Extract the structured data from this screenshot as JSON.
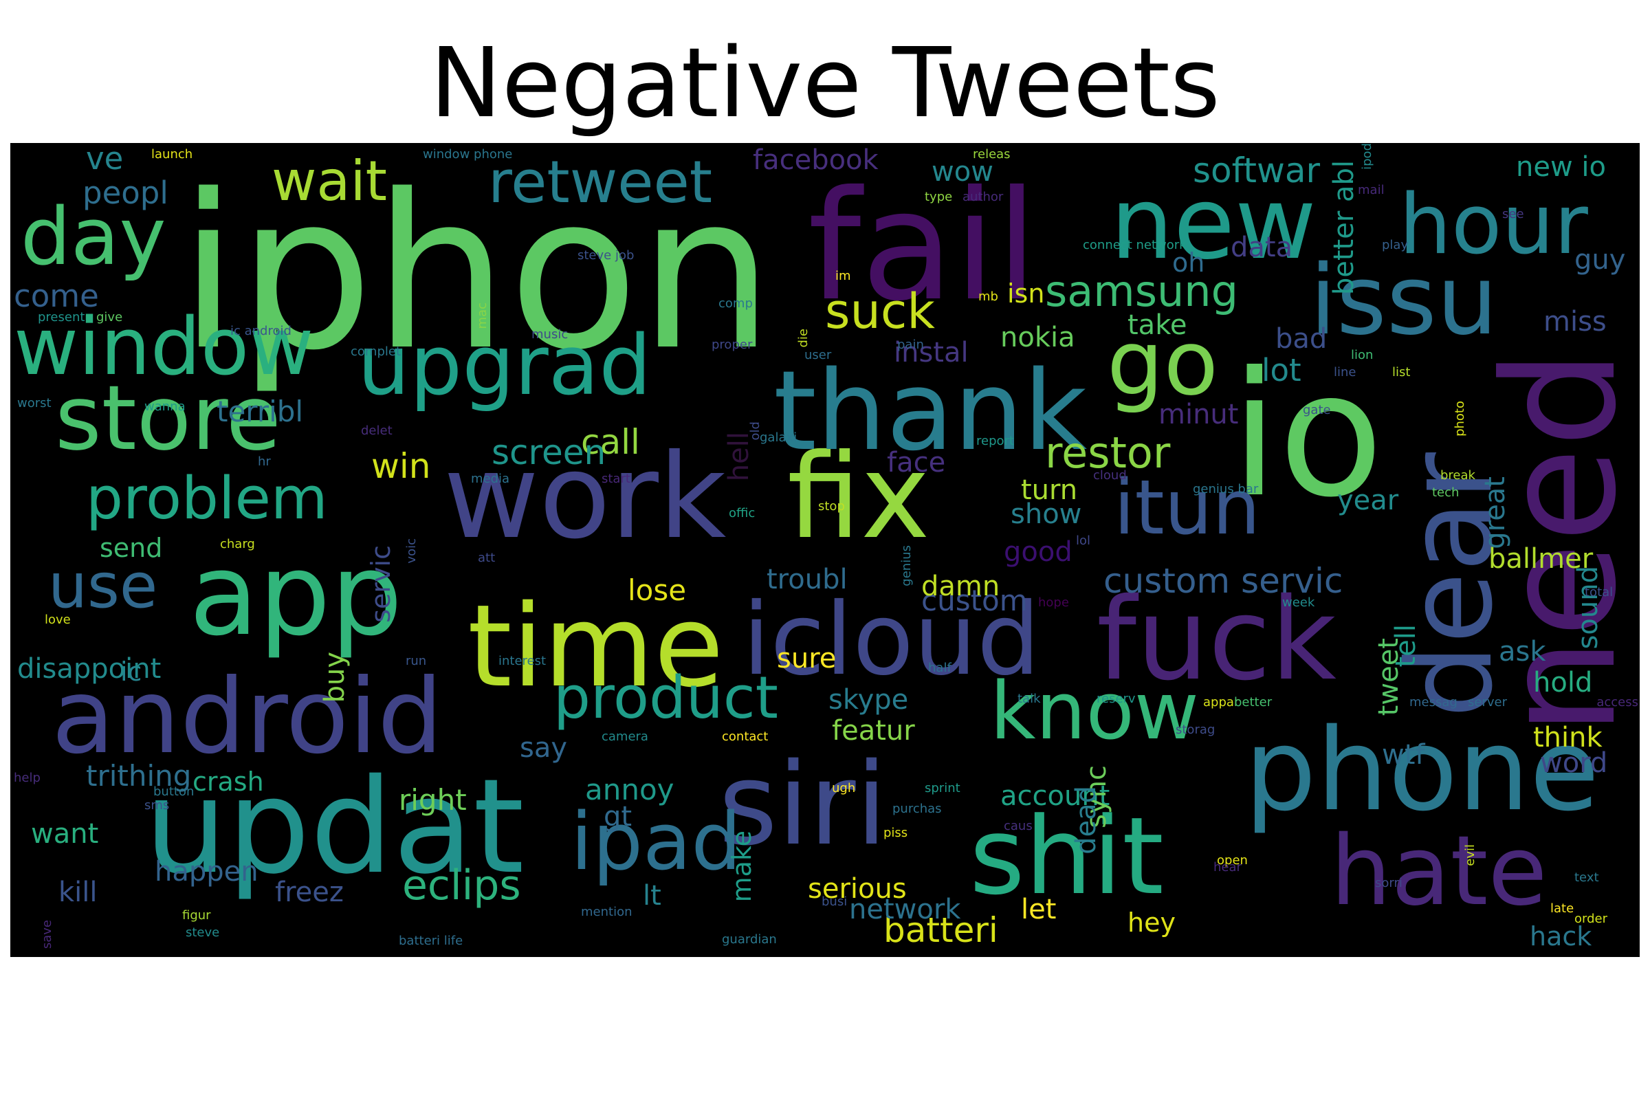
{
  "title": "Negative Tweets",
  "words": [
    {
      "t": "iphon",
      "c": "#5cc863"
    },
    {
      "t": "fail",
      "c": "#440f62"
    },
    {
      "t": "new",
      "c": "#1f9a8a"
    },
    {
      "t": "hour",
      "c": "#26828e"
    },
    {
      "t": "issu",
      "c": "#2c728e"
    },
    {
      "t": "go",
      "c": "#7ad151"
    },
    {
      "t": "io",
      "c": "#5ec962"
    },
    {
      "t": "need",
      "c": "#481a6c"
    },
    {
      "t": "dear",
      "c": "#3b528b"
    },
    {
      "t": "work",
      "c": "#414487"
    },
    {
      "t": "fix",
      "c": "#95d840"
    },
    {
      "t": "app",
      "c": "#31b57b"
    },
    {
      "t": "time",
      "c": "#b5de2b"
    },
    {
      "t": "icloud",
      "c": "#3f4788"
    },
    {
      "t": "fuck",
      "c": "#482475"
    },
    {
      "t": "updat",
      "c": "#21918c"
    },
    {
      "t": "siri",
      "c": "#3e4a89"
    },
    {
      "t": "phone",
      "c": "#2a788e"
    },
    {
      "t": "android",
      "c": "#404387"
    },
    {
      "t": "ipad",
      "c": "#2d708e"
    },
    {
      "t": "shit",
      "c": "#25ab82"
    },
    {
      "t": "hate",
      "c": "#482878"
    },
    {
      "t": "know",
      "c": "#35b779"
    },
    {
      "t": "thank",
      "c": "#287d8e"
    },
    {
      "t": "itun",
      "c": "#39568c"
    },
    {
      "t": "upgrad",
      "c": "#1fa088"
    },
    {
      "t": "store",
      "c": "#4ac16d"
    },
    {
      "t": "window",
      "c": "#2ab07f"
    },
    {
      "t": "day",
      "c": "#46c06f"
    },
    {
      "t": "retweet",
      "c": "#277f8e"
    },
    {
      "t": "wait",
      "c": "#a8db34"
    },
    {
      "t": "suck",
      "c": "#c8e020"
    },
    {
      "t": "samsung",
      "c": "#3dbc74"
    },
    {
      "t": "problem",
      "c": "#22a785"
    },
    {
      "t": "use",
      "c": "#31688e"
    },
    {
      "t": "product",
      "c": "#1f9e89"
    },
    {
      "t": "eclips",
      "c": "#2db27d"
    },
    {
      "t": "batteri",
      "c": "#d8e219"
    },
    {
      "t": "restor",
      "c": "#8bd646"
    },
    {
      "t": "custom servic",
      "c": "#355f8d"
    },
    {
      "t": "peopl",
      "c": "#2e6e8e"
    },
    {
      "t": "ve",
      "c": "#25858e"
    },
    {
      "t": "come",
      "c": "#34608d"
    },
    {
      "t": "facebook",
      "c": "#472f7d"
    },
    {
      "t": "wow",
      "c": "#24878e"
    },
    {
      "t": "softwar",
      "c": "#20928c"
    },
    {
      "t": "new io",
      "c": "#1e9c89"
    },
    {
      "t": "guy",
      "c": "#33638d"
    },
    {
      "t": "miss",
      "c": "#3d4e8a"
    },
    {
      "t": "oh",
      "c": "#2f6b8e"
    },
    {
      "t": "data",
      "c": "#433e85"
    },
    {
      "t": "take",
      "c": "#52c569"
    },
    {
      "t": "bad",
      "c": "#3c4f8a"
    },
    {
      "t": "lot",
      "c": "#238a8d"
    },
    {
      "t": "nokia",
      "c": "#67cc5c"
    },
    {
      "t": "instal",
      "c": "#453781"
    },
    {
      "t": "call",
      "c": "#93d741"
    },
    {
      "t": "terribl",
      "c": "#2d718e"
    },
    {
      "t": "win",
      "c": "#d2e21b"
    },
    {
      "t": "screen",
      "c": "#1f958b"
    },
    {
      "t": "minut",
      "c": "#472d7b"
    },
    {
      "t": "face",
      "c": "#46307e"
    },
    {
      "t": "turn",
      "c": "#aadc32"
    },
    {
      "t": "show",
      "c": "#27808e"
    },
    {
      "t": "good",
      "c": "#3b0f70"
    },
    {
      "t": "year",
      "c": "#228c8d"
    },
    {
      "t": "ask",
      "c": "#2a768e"
    },
    {
      "t": "hold",
      "c": "#27ad81"
    },
    {
      "t": "ballmer",
      "c": "#b2dd2d"
    },
    {
      "t": "sound",
      "c": "#23888e"
    },
    {
      "t": "great",
      "c": "#2a788e"
    },
    {
      "t": "tell",
      "c": "#1e9b8a"
    },
    {
      "t": "tweet",
      "c": "#56c667"
    },
    {
      "t": "think",
      "c": "#d0e11c"
    },
    {
      "t": "word",
      "c": "#3f4889"
    },
    {
      "t": "wtf",
      "c": "#2e6f8e"
    },
    {
      "t": "account",
      "c": "#20a386"
    },
    {
      "t": "featur",
      "c": "#86d549"
    },
    {
      "t": "skype",
      "c": "#287c8e"
    },
    {
      "t": "custom",
      "c": "#3b528b"
    },
    {
      "t": "troubl",
      "c": "#2f6c8e"
    },
    {
      "t": "damn",
      "c": "#c0df25"
    },
    {
      "t": "lose",
      "c": "#e5e419"
    },
    {
      "t": "sure",
      "c": "#fde725"
    },
    {
      "t": "send",
      "c": "#3fbc73"
    },
    {
      "t": "ic",
      "c": "#25848e"
    },
    {
      "t": "disappoint",
      "c": "#228b8d"
    },
    {
      "t": "buy",
      "c": "#84d44b"
    },
    {
      "t": "trithing",
      "c": "#2e6f8e"
    },
    {
      "t": "crash",
      "c": "#24aa83"
    },
    {
      "t": "right",
      "c": "#6ece58"
    },
    {
      "t": "annoy",
      "c": "#1f998a"
    },
    {
      "t": "gt",
      "c": "#306a8e"
    },
    {
      "t": "make",
      "c": "#1e9d89"
    },
    {
      "t": "say",
      "c": "#31668e"
    },
    {
      "t": "sync",
      "c": "#6ccd5a"
    },
    {
      "t": "want",
      "c": "#29af7f"
    },
    {
      "t": "happen",
      "c": "#33638d"
    },
    {
      "t": "kill",
      "c": "#3a548c"
    },
    {
      "t": "freez",
      "c": "#3b528b"
    },
    {
      "t": "lt",
      "c": "#26828e"
    },
    {
      "t": "serious",
      "c": "#e2e418"
    },
    {
      "t": "network",
      "c": "#2c728e"
    },
    {
      "t": "let",
      "c": "#fde725"
    },
    {
      "t": "dead",
      "c": "#287d8e"
    },
    {
      "t": "hack",
      "c": "#2a788e"
    },
    {
      "t": "hey",
      "c": "#dfe318"
    },
    {
      "t": "servic",
      "c": "#3e4c8a"
    },
    {
      "t": "hell",
      "c": "#30123b"
    },
    {
      "t": "isn",
      "c": "#d2e21b"
    },
    {
      "t": "better abl",
      "c": "#1f9a8a"
    },
    {
      "t": "launch",
      "c": "#e5e419"
    },
    {
      "t": "window phone",
      "c": "#2a768e"
    },
    {
      "t": "releas",
      "c": "#9bd93c"
    },
    {
      "t": "author",
      "c": "#472a7a"
    },
    {
      "t": "type",
      "c": "#90d743"
    },
    {
      "t": "steve job",
      "c": "#3b528b"
    },
    {
      "t": "die",
      "c": "#c2df23"
    },
    {
      "t": "im",
      "c": "#fde725"
    },
    {
      "t": "comp",
      "c": "#2a788e"
    },
    {
      "t": "connect network",
      "c": "#1f9e89"
    },
    {
      "t": "play",
      "c": "#35608d"
    },
    {
      "t": "see",
      "c": "#453781"
    },
    {
      "t": "mail",
      "c": "#472a7a"
    },
    {
      "t": "ipod",
      "c": "#238a8d"
    },
    {
      "t": "present",
      "c": "#1f948c"
    },
    {
      "t": "give",
      "c": "#5ec962"
    },
    {
      "t": "ic android",
      "c": "#39568c"
    },
    {
      "t": "complet",
      "c": "#2a788e"
    },
    {
      "t": "music",
      "c": "#3e4a89"
    },
    {
      "t": "proper",
      "c": "#3f4889"
    },
    {
      "t": "mac",
      "c": "#89d548"
    },
    {
      "t": "mb",
      "c": "#e2e418"
    },
    {
      "t": "user",
      "c": "#2e6e8e"
    },
    {
      "t": "pain",
      "c": "#33638d"
    },
    {
      "t": "lion",
      "c": "#3fbc73"
    },
    {
      "t": "line",
      "c": "#3b528b"
    },
    {
      "t": "list",
      "c": "#b5de2b"
    },
    {
      "t": "worst",
      "c": "#2a788e"
    },
    {
      "t": "wanna",
      "c": "#1f9a8a"
    },
    {
      "t": "delet",
      "c": "#472d7b"
    },
    {
      "t": "hr",
      "c": "#31688e"
    },
    {
      "t": "old",
      "c": "#3e4c8a"
    },
    {
      "t": "galaxi",
      "c": "#2a788e"
    },
    {
      "t": "report",
      "c": "#1f988b"
    },
    {
      "t": "gate",
      "c": "#3b528b"
    },
    {
      "t": "photo",
      "c": "#d8e219"
    },
    {
      "t": "media",
      "c": "#2c728e"
    },
    {
      "t": "start",
      "c": "#482878"
    },
    {
      "t": "cloud",
      "c": "#46307e"
    },
    {
      "t": "genius bar",
      "c": "#2a768e"
    },
    {
      "t": "break",
      "c": "#b2dd2d"
    },
    {
      "t": "tech",
      "c": "#5ec962"
    },
    {
      "t": "offic",
      "c": "#20a386"
    },
    {
      "t": "stop",
      "c": "#c0df25"
    },
    {
      "t": "voic",
      "c": "#3b528b"
    },
    {
      "t": "lol",
      "c": "#3f4889"
    },
    {
      "t": "charg",
      "c": "#c8e020"
    },
    {
      "t": "genius",
      "c": "#2a788e"
    },
    {
      "t": "att",
      "c": "#3e4a89"
    },
    {
      "t": "hope",
      "c": "#440154"
    },
    {
      "t": "week",
      "c": "#228c8d"
    },
    {
      "t": "total",
      "c": "#3b528b"
    },
    {
      "t": "love",
      "c": "#d2e21b"
    },
    {
      "t": "interest",
      "c": "#2a768e"
    },
    {
      "t": "run",
      "c": "#39568c"
    },
    {
      "t": "half",
      "c": "#2c728e"
    },
    {
      "t": "appar",
      "c": "#d8e219"
    },
    {
      "t": "talk",
      "c": "#2a788e"
    },
    {
      "t": "reserv",
      "c": "#1f958b"
    },
    {
      "t": "better",
      "c": "#46c06f"
    },
    {
      "t": "messag",
      "c": "#31688e"
    },
    {
      "t": "server",
      "c": "#2e6e8e"
    },
    {
      "t": "access",
      "c": "#482878"
    },
    {
      "t": "camera",
      "c": "#228b8d"
    },
    {
      "t": "contact",
      "c": "#fde725"
    },
    {
      "t": "storag",
      "c": "#3e4c8a"
    },
    {
      "t": "help",
      "c": "#472d7b"
    },
    {
      "t": "sms",
      "c": "#3b528b"
    },
    {
      "t": "button",
      "c": "#2a788e"
    },
    {
      "t": "ugh",
      "c": "#fde725"
    },
    {
      "t": "sprint",
      "c": "#1f9a8a"
    },
    {
      "t": "piss",
      "c": "#e2e418"
    },
    {
      "t": "purchas",
      "c": "#2c728e"
    },
    {
      "t": "caus",
      "c": "#46307e"
    },
    {
      "t": "open",
      "c": "#e5e419"
    },
    {
      "t": "sorri",
      "c": "#3e4a89"
    },
    {
      "t": "evil",
      "c": "#c8e020"
    },
    {
      "t": "text",
      "c": "#2a788e"
    },
    {
      "t": "hear",
      "c": "#472a7a"
    },
    {
      "t": "order",
      "c": "#d2e21b"
    },
    {
      "t": "busi",
      "c": "#3b528b"
    },
    {
      "t": "late",
      "c": "#fde725"
    },
    {
      "t": "save",
      "c": "#482878"
    },
    {
      "t": "figur",
      "c": "#a8db34"
    },
    {
      "t": "steve",
      "c": "#228c8d"
    },
    {
      "t": "mention",
      "c": "#31688e"
    },
    {
      "t": "batteri life",
      "c": "#2e6e8e"
    },
    {
      "t": "guardian",
      "c": "#2a788e"
    }
  ]
}
